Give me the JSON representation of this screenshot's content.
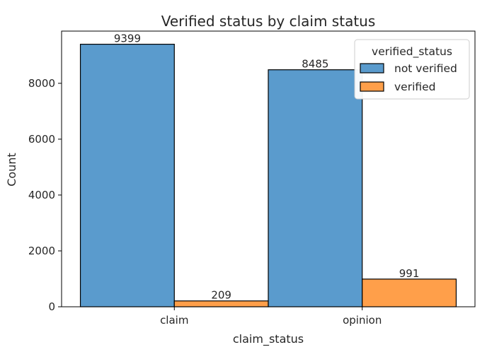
{
  "chart_data": {
    "type": "bar",
    "title": "Verified status by claim status",
    "xlabel": "claim_status",
    "ylabel": "Count",
    "categories": [
      "claim",
      "opinion"
    ],
    "series": [
      {
        "name": "not verified",
        "values": [
          9399,
          8485
        ],
        "color": "#5a9bcd"
      },
      {
        "name": "verified",
        "values": [
          209,
          991
        ],
        "color": "#ff9f4a"
      }
    ],
    "data_labels": [
      "9399",
      "209",
      "8485",
      "991"
    ],
    "yticks": [
      0,
      2000,
      4000,
      6000,
      8000
    ],
    "ytick_labels": [
      "0",
      "2000",
      "4000",
      "6000",
      "8000"
    ],
    "ylim": [
      0,
      9869
    ],
    "grid": false,
    "legend": {
      "title": "verified_status",
      "placement": "top-right",
      "entries": [
        "not verified",
        "verified"
      ]
    }
  }
}
